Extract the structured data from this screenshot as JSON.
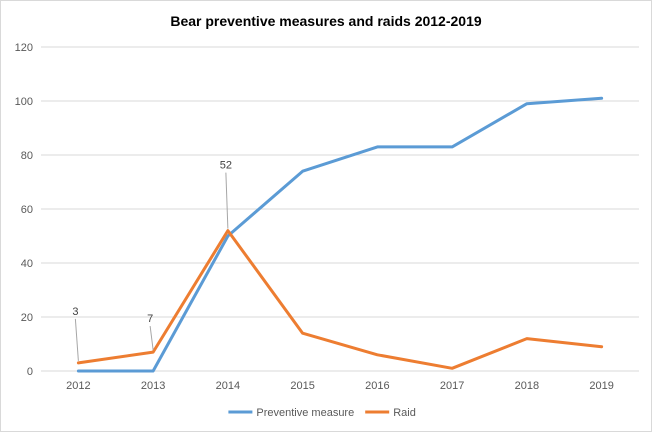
{
  "chart_data": {
    "type": "line",
    "title": "Bear preventive measures and raids 2012-2019",
    "xlabel": "",
    "ylabel": "",
    "categories": [
      "2012",
      "2013",
      "2014",
      "2015",
      "2016",
      "2017",
      "2018",
      "2019"
    ],
    "ylim": [
      0,
      120
    ],
    "yticks": [
      0,
      20,
      40,
      60,
      80,
      100,
      120
    ],
    "grid": true,
    "legend_position": "bottom",
    "series": [
      {
        "name": "Preventive measure",
        "color": "#5b9bd5",
        "values": [
          0,
          0,
          50,
          74,
          83,
          83,
          99,
          101
        ]
      },
      {
        "name": "Raid",
        "color": "#ed7d31",
        "values": [
          3,
          7,
          52,
          14,
          6,
          1,
          12,
          9
        ]
      }
    ],
    "data_labels": [
      {
        "series": "Raid",
        "category": "2012",
        "text": "3"
      },
      {
        "series": "Raid",
        "category": "2013",
        "text": "7"
      },
      {
        "series": "Raid",
        "category": "2014",
        "text": "52"
      }
    ]
  }
}
